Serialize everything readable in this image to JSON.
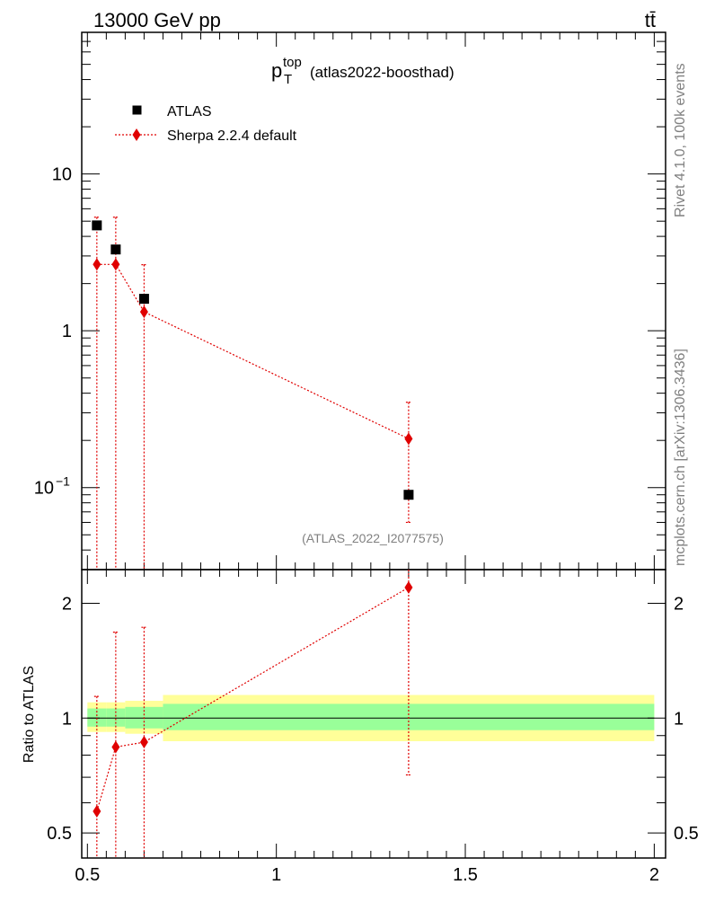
{
  "header": {
    "energy_label": "13000 GeV pp",
    "process_label": "tt̄"
  },
  "side_labels": {
    "rivet": "Rivet 4.1.0,  100k events",
    "mcplots": "mcplots.cern.ch [arXiv:1306.3436]"
  },
  "colors": {
    "data": "#000000",
    "mc": "#e00000",
    "band_inner": "#99ff99",
    "band_outer": "#ffff99"
  },
  "chart_data": [
    {
      "type": "scatter",
      "panel": "main",
      "title": {
        "main": "p",
        "sup": "top",
        "sub": "T",
        "tag": "(atlas2022-boosthad)"
      },
      "analysis_label": "(ATLAS_2022_I2077575)",
      "yscale": "log",
      "xlim": [
        0.485,
        2.03
      ],
      "ylim": [
        0.03,
        80
      ],
      "yticks": [
        {
          "value": 10,
          "label": "10"
        },
        {
          "value": 1,
          "label": "1"
        },
        {
          "value": 0.1,
          "label": "10",
          "sup": "−1"
        }
      ],
      "legend": {
        "position": "top-left",
        "entries": [
          "ATLAS",
          "Sherpa 2.2.4 default"
        ]
      },
      "series": [
        {
          "name": "ATLAS",
          "marker": "square",
          "x": [
            0.525,
            0.575,
            0.65,
            1.35
          ],
          "y": [
            4.7,
            3.3,
            1.6,
            0.09
          ]
        },
        {
          "name": "Sherpa 2.2.4 default",
          "marker": "diamond",
          "line": "dotted",
          "x": [
            0.525,
            0.575,
            0.65,
            1.35
          ],
          "y": [
            2.65,
            2.65,
            1.32,
            0.205
          ],
          "err_low": [
            2.65,
            2.65,
            1.32,
            0.145
          ],
          "err_high": [
            2.65,
            2.65,
            1.32,
            0.145
          ]
        }
      ]
    },
    {
      "type": "scatter",
      "panel": "ratio",
      "ylabel": "Ratio to ATLAS",
      "yscale": "log",
      "xlim": [
        0.485,
        2.03
      ],
      "ylim": [
        0.43,
        2.45
      ],
      "xticks": [
        {
          "value": 0.5,
          "label": "0.5"
        },
        {
          "value": 1,
          "label": "1"
        },
        {
          "value": 1.5,
          "label": "1.5"
        },
        {
          "value": 2,
          "label": "2"
        }
      ],
      "yticks": [
        {
          "value": 0.5,
          "label": "0.5"
        },
        {
          "value": 1,
          "label": "1"
        },
        {
          "value": 2,
          "label": "2"
        }
      ],
      "bands": [
        {
          "x0": 0.5,
          "x1": 0.55,
          "inner": [
            0.95,
            1.06
          ],
          "outer": [
            0.92,
            1.1
          ]
        },
        {
          "x0": 0.55,
          "x1": 0.6,
          "inner": [
            0.95,
            1.06
          ],
          "outer": [
            0.92,
            1.1
          ]
        },
        {
          "x0": 0.6,
          "x1": 0.7,
          "inner": [
            0.94,
            1.07
          ],
          "outer": [
            0.91,
            1.11
          ]
        },
        {
          "x0": 0.7,
          "x1": 2.0,
          "inner": [
            0.93,
            1.09
          ],
          "outer": [
            0.87,
            1.15
          ]
        }
      ],
      "series": [
        {
          "name": "Sherpa 2.2.4 default",
          "marker": "diamond",
          "line": "dotted",
          "x": [
            0.525,
            0.575,
            0.65,
            1.35
          ],
          "y": [
            0.57,
            0.84,
            0.865,
            2.2
          ],
          "err_low": [
            0.57,
            0.84,
            0.865,
            1.49
          ],
          "err_high": [
            0.57,
            0.84,
            0.865,
            1.49
          ]
        }
      ]
    }
  ]
}
